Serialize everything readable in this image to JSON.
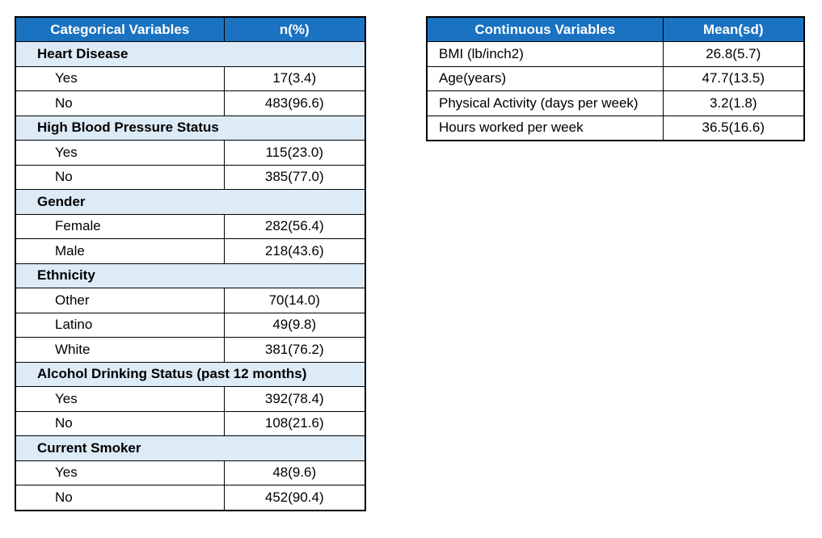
{
  "categorical": {
    "header": {
      "col1": "Categorical Variables",
      "col2": "n(%)"
    },
    "groups": [
      {
        "title": "Heart Disease",
        "rows": [
          {
            "label": "Yes",
            "value": "17(3.4)"
          },
          {
            "label": "No",
            "value": "483(96.6)"
          }
        ]
      },
      {
        "title": "High Blood Pressure Status",
        "rows": [
          {
            "label": "Yes",
            "value": "115(23.0)"
          },
          {
            "label": "No",
            "value": "385(77.0)"
          }
        ]
      },
      {
        "title": "Gender",
        "rows": [
          {
            "label": "Female",
            "value": "282(56.4)"
          },
          {
            "label": "Male",
            "value": "218(43.6)"
          }
        ]
      },
      {
        "title": "Ethnicity",
        "rows": [
          {
            "label": "Other",
            "value": "70(14.0)"
          },
          {
            "label": "Latino",
            "value": "49(9.8)"
          },
          {
            "label": "White",
            "value": "381(76.2)"
          }
        ]
      },
      {
        "title": "Alcohol Drinking Status (past 12 months)",
        "rows": [
          {
            "label": "Yes",
            "value": "392(78.4)"
          },
          {
            "label": "No",
            "value": "108(21.6)"
          }
        ]
      },
      {
        "title": "Current Smoker",
        "rows": [
          {
            "label": "Yes",
            "value": "48(9.6)"
          },
          {
            "label": "No",
            "value": "452(90.4)"
          }
        ]
      }
    ]
  },
  "continuous": {
    "header": {
      "col1": "Continuous Variables",
      "col2": "Mean(sd)"
    },
    "rows": [
      {
        "label": "BMI (lb/inch2)",
        "value": "26.8(5.7)"
      },
      {
        "label": "Age(years)",
        "value": "47.7(13.5)"
      },
      {
        "label": "Physical Activity (days per week)",
        "value": "3.2(1.8)"
      },
      {
        "label": "Hours worked per week",
        "value": "36.5(16.6)"
      }
    ]
  },
  "colors": {
    "header_bg": "#1b72c0",
    "header_text": "#ffffff",
    "group_bg": "#ddebf7"
  }
}
